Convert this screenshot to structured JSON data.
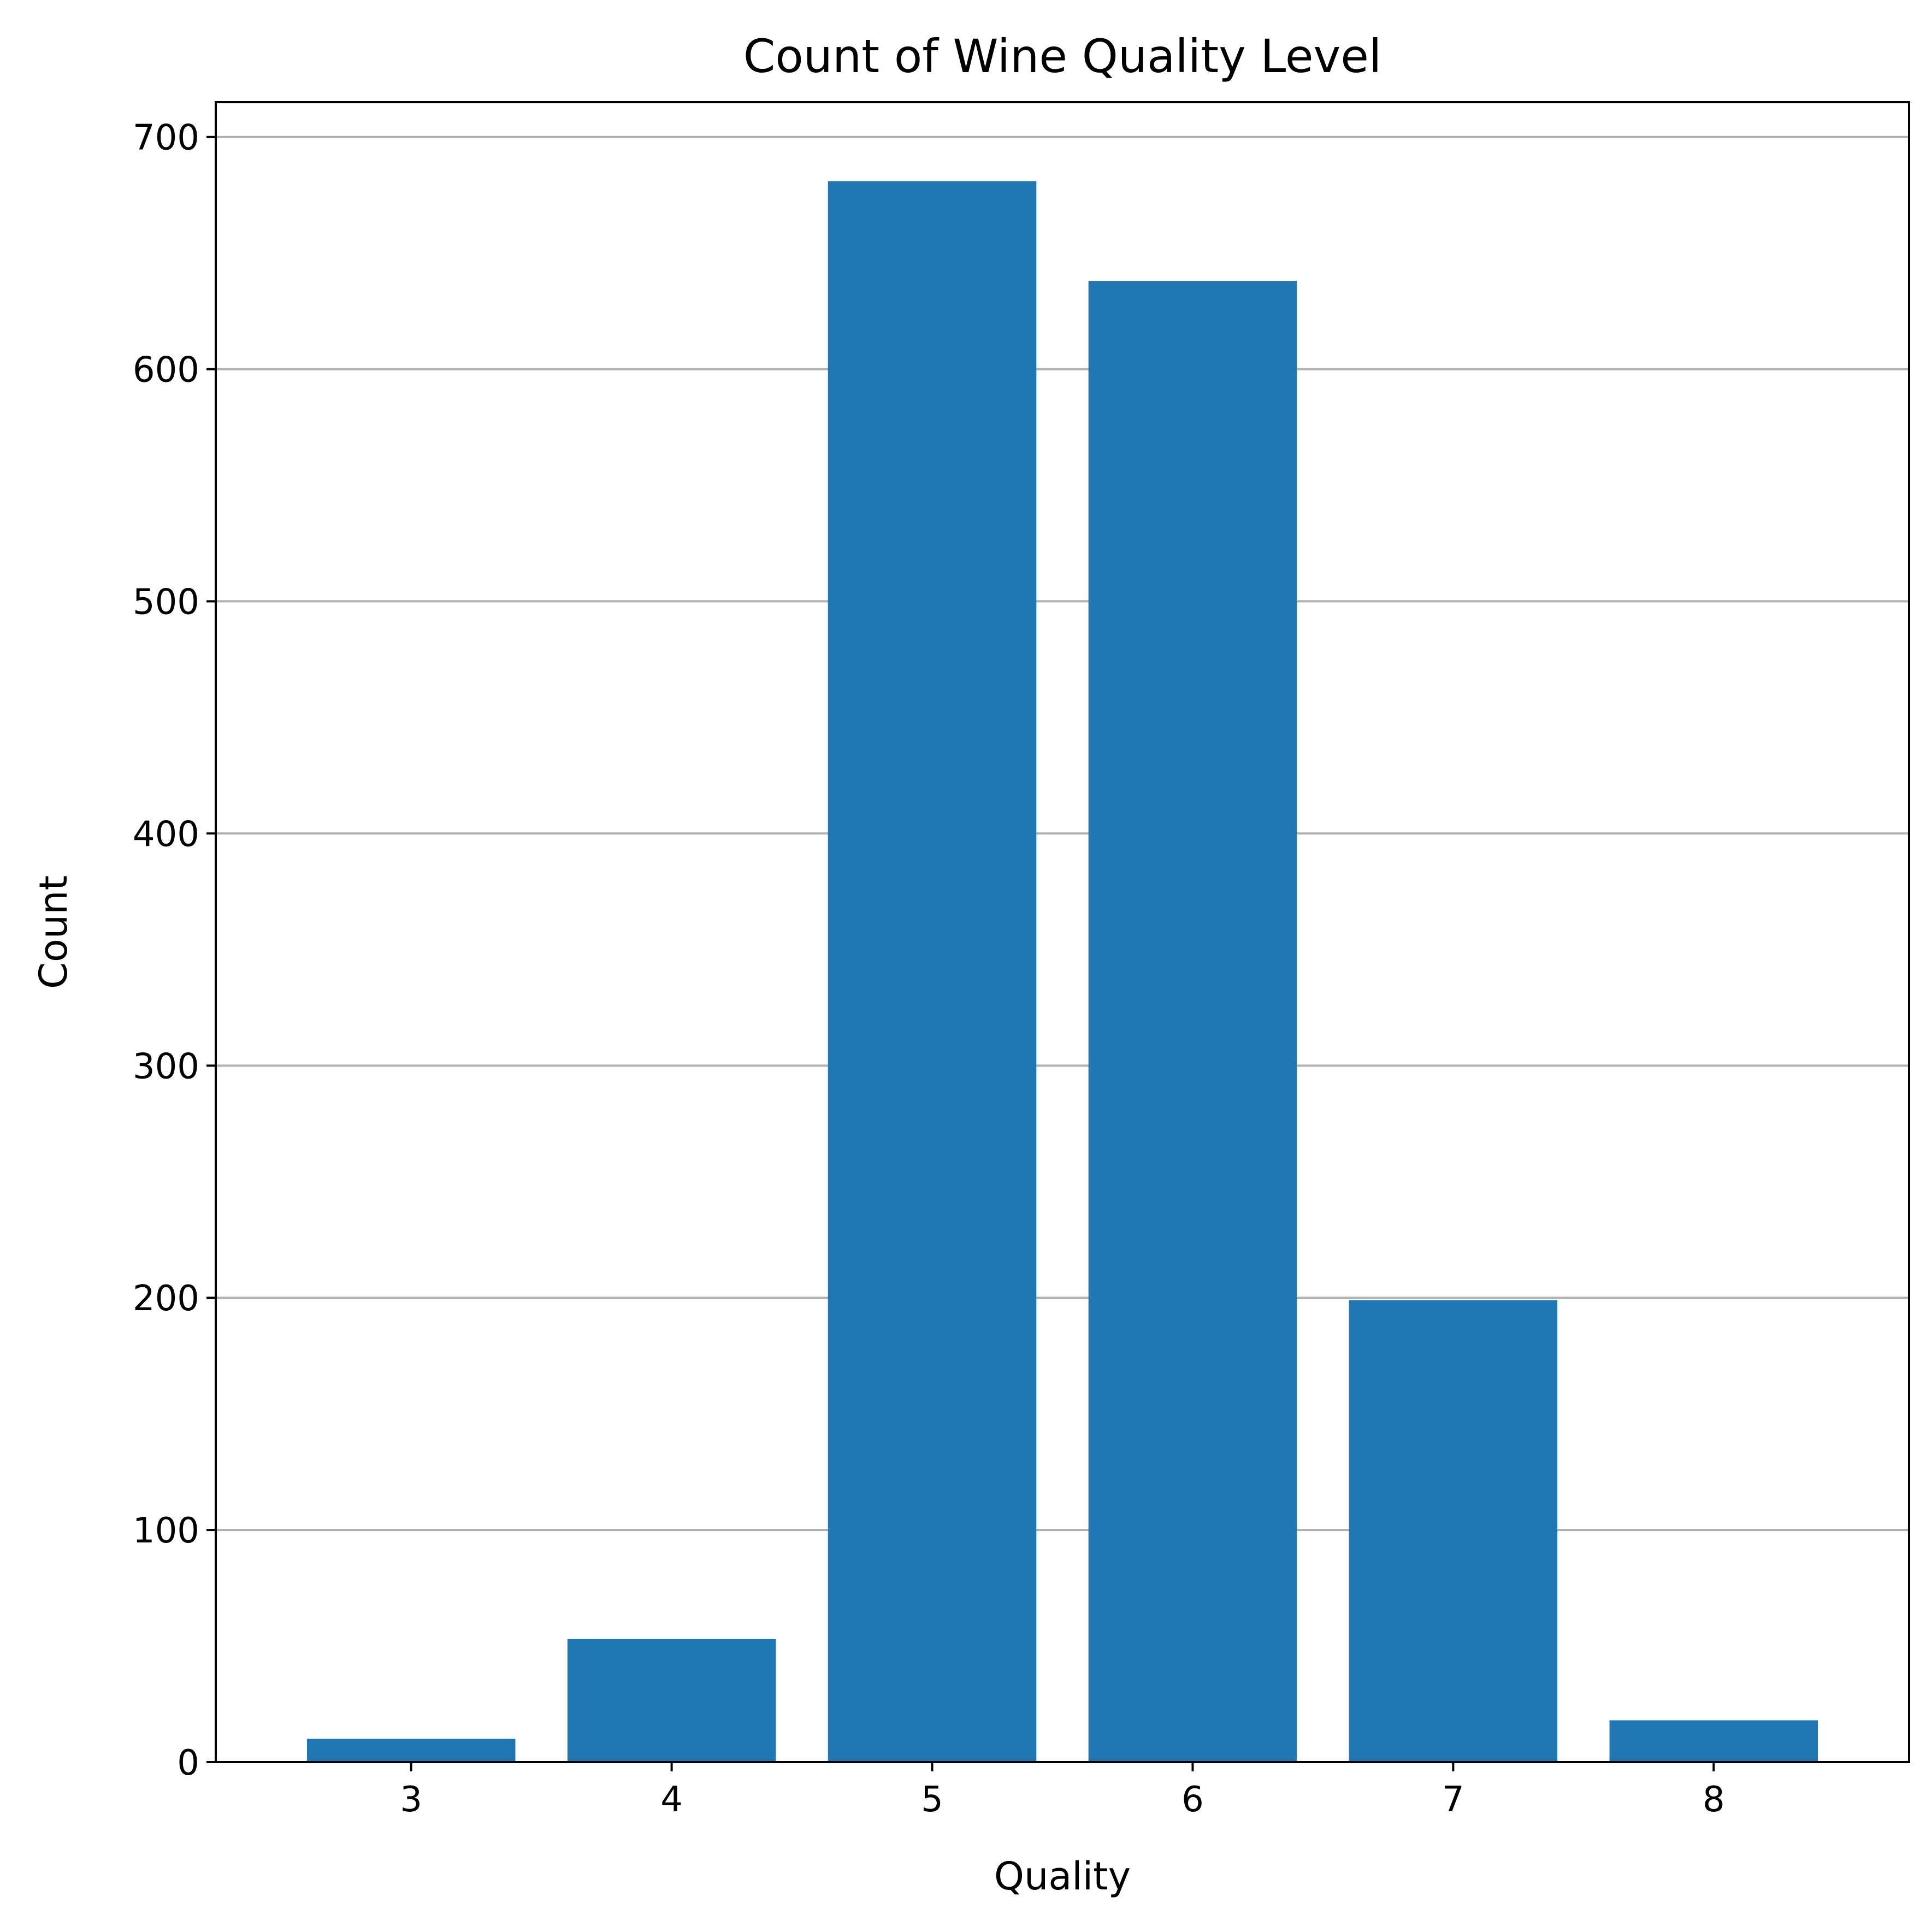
{
  "chart_data": {
    "type": "bar",
    "title": "Count of Wine Quality Level",
    "xlabel": "Quality",
    "ylabel": "Count",
    "categories": [
      "3",
      "4",
      "5",
      "6",
      "7",
      "8"
    ],
    "values": [
      10,
      53,
      681,
      638,
      199,
      18
    ],
    "ylim": [
      0,
      715
    ],
    "yticks": [
      0,
      100,
      200,
      300,
      400,
      500,
      600,
      700
    ],
    "grid": "y",
    "legend": "none",
    "colors": {
      "bar": "#1f77b4",
      "grid": "#b0b0b0",
      "axis": "#000000"
    }
  }
}
